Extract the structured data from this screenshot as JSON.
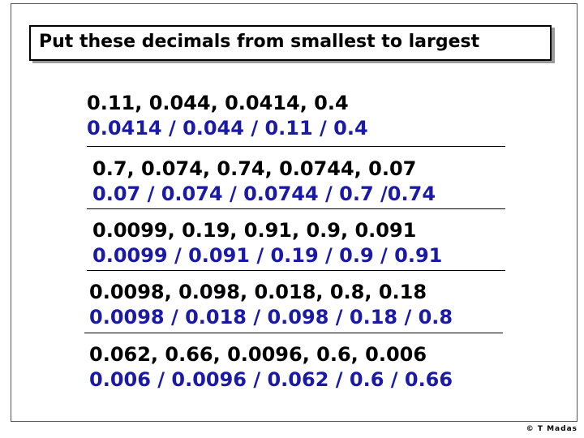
{
  "title": "Put these decimals from smallest to largest",
  "problems": [
    {
      "question": "0.11, 0.044, 0.0414, 0.4",
      "answer": "0.0414 / 0.044 / 0.11 / 0.4"
    },
    {
      "question": "0.7, 0.074, 0.74, 0.0744, 0.07",
      "answer": "0.07 / 0.074 / 0.0744 / 0.7 /0.74"
    },
    {
      "question": "0.0099, 0.19, 0.91, 0.9, 0.091",
      "answer": "0.0099 / 0.091 / 0.19 / 0.9 / 0.91"
    },
    {
      "question": "0.0098, 0.098, 0.018, 0.8, 0.18",
      "answer": "0.0098 / 0.018 / 0.098 / 0.18 / 0.8"
    },
    {
      "question": "0.062, 0.66, 0.0096, 0.6, 0.006",
      "answer": "0.006 / 0.0096 / 0.062 / 0.6 / 0.66"
    }
  ],
  "credit": "© T Madas",
  "colors": {
    "question_text": "#000000",
    "answer_text": "#1a1aa6"
  }
}
